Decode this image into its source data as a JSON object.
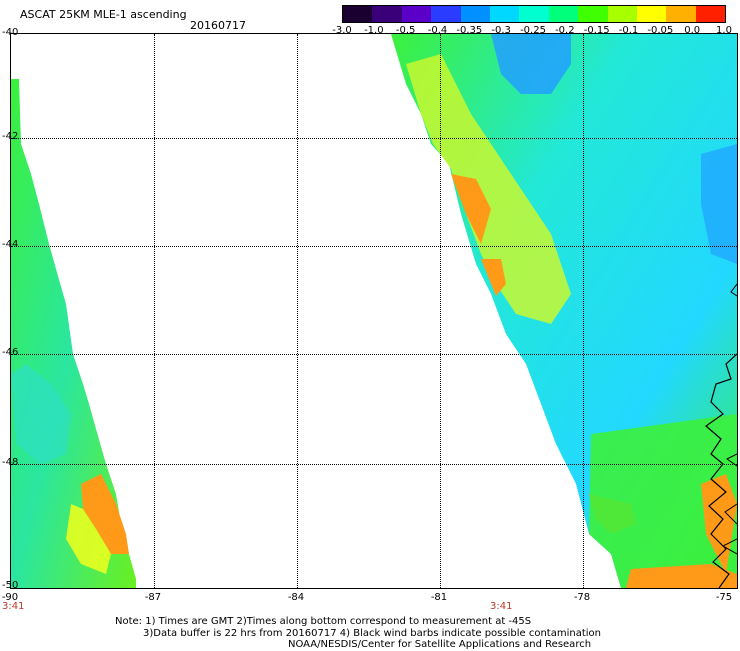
{
  "title": "ASCAT 25KM MLE-1 ascending",
  "date": "20160717",
  "colorbar": {
    "labels": [
      "-3.0",
      "-1.0",
      "-0.5",
      "-0.4",
      "-0.35",
      "-0.3",
      "-0.25",
      "-0.2",
      "-0.15",
      "-0.1",
      "-0.05",
      "0.0",
      "1.0"
    ],
    "colors": [
      "#1a0030",
      "#3a007a",
      "#5a00c8",
      "#2a3cff",
      "#0090ff",
      "#00d8ff",
      "#00ffd0",
      "#00ff7a",
      "#40ff00",
      "#a8ff00",
      "#ffff00",
      "#ffb000",
      "#ff2000"
    ]
  },
  "axes": {
    "lat_labels": [
      "-40",
      "-42",
      "-44",
      "-46",
      "-48",
      "-50"
    ],
    "lon_labels": [
      "-90",
      "-87",
      "-84",
      "-81",
      "-78",
      "-75"
    ]
  },
  "time_labels": [
    "3:41",
    "3:41"
  ],
  "notes": [
    "Note: 1) Times are GMT 2)Times along bottom correspond to measurement at -45S",
    "3)Data buffer is 22 hrs from 20160717 4) Black wind barbs indicate possible contamination",
    "NOAA/NESDIS/Center for Satellite Applications and Research"
  ],
  "map_colors": {
    "green": "#3cf03c",
    "cyan": "#00ffd8",
    "light_cyan": "#22e8ff",
    "blue": "#22a8ff",
    "yellow": "#e8ff20",
    "orange": "#ff9a18"
  }
}
